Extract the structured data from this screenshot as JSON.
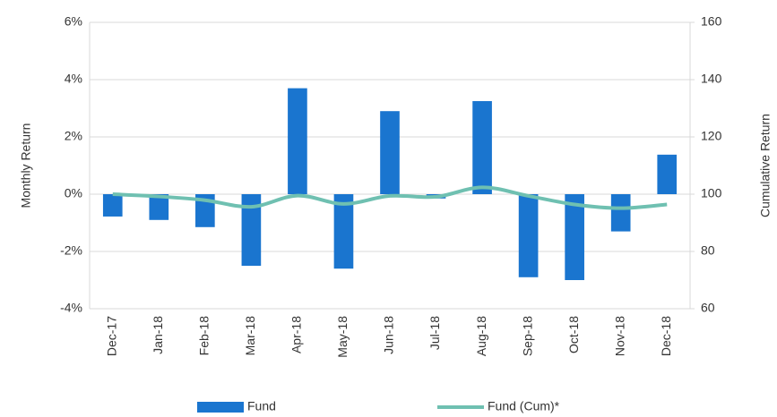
{
  "chart_data": {
    "type": "bar-line",
    "y_label": "Monthly Return",
    "y2_label": "Cumulative Return",
    "categories": [
      "Dec-17",
      "Jan-18",
      "Feb-18",
      "Mar-18",
      "Apr-18",
      "May-18",
      "Jun-18",
      "Jul-18",
      "Aug-18",
      "Sep-18",
      "Oct-18",
      "Nov-18",
      "Dec-18"
    ],
    "series": [
      {
        "name": "Fund",
        "type": "bar",
        "color": "#1a75cf",
        "values": [
          -0.78,
          -0.9,
          -1.15,
          -2.5,
          3.7,
          -2.6,
          2.9,
          -0.15,
          3.25,
          -2.9,
          -3.0,
          -1.3,
          1.38
        ]
      },
      {
        "name": "Fund (Cum)*",
        "type": "line",
        "axis": "y2",
        "color": "#6fc0b1",
        "values": [
          100,
          99.2,
          97.9,
          95.6,
          99.5,
          96.6,
          99.4,
          99.1,
          102.4,
          99.4,
          96.4,
          95.1,
          96.4
        ]
      }
    ],
    "ylim": [
      -4,
      6
    ],
    "yticks": [
      {
        "value": -4,
        "label": "-4%"
      },
      {
        "value": -2,
        "label": "-2%"
      },
      {
        "value": 0,
        "label": "0%"
      },
      {
        "value": 2,
        "label": "2%"
      },
      {
        "value": 4,
        "label": "4%"
      },
      {
        "value": 6,
        "label": "6%"
      }
    ],
    "y2lim": [
      60,
      160
    ],
    "y2ticks": [
      60,
      80,
      100,
      120,
      140,
      160
    ],
    "grid": true,
    "legend": "bottom"
  }
}
